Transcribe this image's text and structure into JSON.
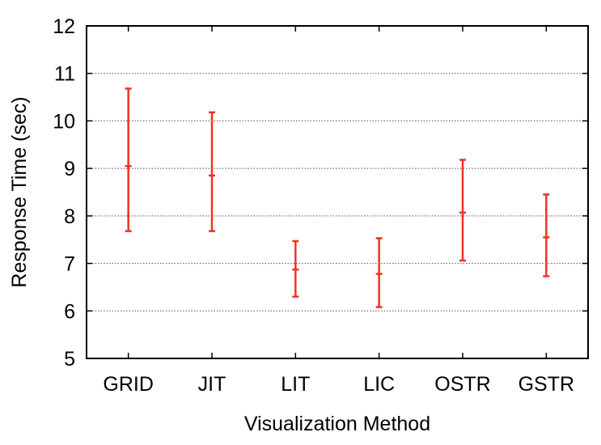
{
  "chart_data": {
    "type": "errorbar",
    "xlabel": "Visualization Method",
    "ylabel": "Response Time (sec)",
    "categories": [
      "GRID",
      "JIT",
      "LIT",
      "LIC",
      "OSTR",
      "GSTR"
    ],
    "mean": [
      9.05,
      8.85,
      6.87,
      6.78,
      8.07,
      7.55
    ],
    "lower": [
      7.68,
      7.68,
      6.3,
      6.08,
      7.06,
      6.73
    ],
    "upper": [
      10.68,
      10.18,
      7.47,
      7.53,
      9.18,
      8.45
    ],
    "ylim": [
      5,
      12
    ],
    "yticks": [
      5,
      6,
      7,
      8,
      9,
      10,
      11,
      12
    ],
    "grid": true,
    "error_color": "#ee3322"
  }
}
